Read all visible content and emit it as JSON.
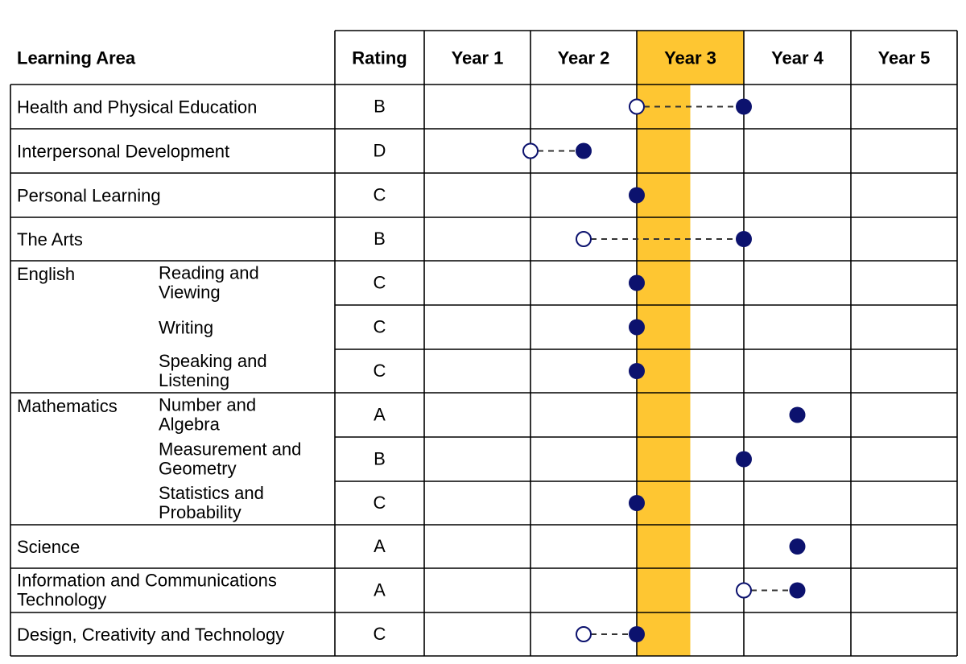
{
  "headers": {
    "learning_area": "Learning Area",
    "rating": "Rating",
    "years": [
      "Year 1",
      "Year 2",
      "Year 3",
      "Year 4",
      "Year 5"
    ],
    "highlighted_year": "Year 3"
  },
  "colors": {
    "highlight": "#FEC632",
    "marker": "#0C126E",
    "grid": "#000000",
    "connector": "#333333"
  },
  "rows": [
    {
      "area": "Health and Physical Education",
      "sub": "",
      "rating": "B",
      "from": 3.0,
      "to": 4.0
    },
    {
      "area": "Interpersonal Development",
      "sub": "",
      "rating": "D",
      "from": 2.0,
      "to": 2.5
    },
    {
      "area": "Personal Learning",
      "sub": "",
      "rating": "C",
      "from": null,
      "to": 3.0
    },
    {
      "area": "The Arts",
      "sub": "",
      "rating": "B",
      "from": 2.5,
      "to": 4.0
    },
    {
      "area": "English",
      "sub": "Reading and Viewing",
      "rating": "C",
      "from": null,
      "to": 3.0
    },
    {
      "area": "",
      "sub": "Writing",
      "rating": "C",
      "from": null,
      "to": 3.0
    },
    {
      "area": "",
      "sub": "Speaking and Listening",
      "rating": "C",
      "from": null,
      "to": 3.0
    },
    {
      "area": "Mathematics",
      "sub": "Number and Algebra",
      "rating": "A",
      "from": null,
      "to": 4.5
    },
    {
      "area": "",
      "sub": "Measurement and Geometry",
      "rating": "B",
      "from": null,
      "to": 4.0
    },
    {
      "area": "",
      "sub": "Statistics and Probability",
      "rating": "C",
      "from": null,
      "to": 3.0
    },
    {
      "area": "Science",
      "sub": "",
      "rating": "A",
      "from": null,
      "to": 4.5
    },
    {
      "area": "Information and Communications Technology",
      "sub": "",
      "rating": "A",
      "from": 4.0,
      "to": 4.5
    },
    {
      "area": "Design, Creativity and Technology",
      "sub": "",
      "rating": "C",
      "from": 2.5,
      "to": 3.0
    }
  ]
}
